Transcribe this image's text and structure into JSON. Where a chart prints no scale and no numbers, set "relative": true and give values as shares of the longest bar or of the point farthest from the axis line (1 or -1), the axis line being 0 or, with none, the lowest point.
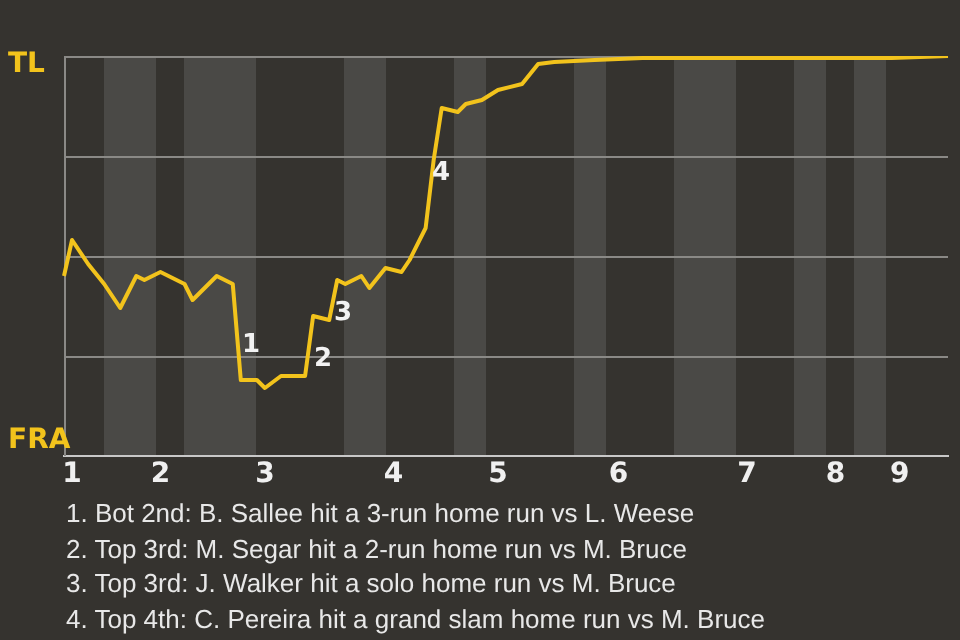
{
  "chart_data": {
    "type": "line",
    "relative": true,
    "categories": [
      null,
      "1",
      null,
      null,
      null,
      null,
      null,
      null,
      null,
      null,
      null,
      null,
      "2",
      null,
      null,
      null,
      null,
      null,
      null,
      null,
      null,
      null,
      null,
      null,
      null,
      "3",
      null,
      null,
      null,
      null,
      null,
      null,
      null,
      null,
      null,
      null,
      null,
      null,
      null,
      null,
      null,
      "4",
      null,
      null,
      null,
      null,
      null,
      null,
      null,
      null,
      null,
      null,
      null,
      null,
      "5",
      null,
      null,
      null,
      null,
      null,
      null,
      null,
      null,
      null,
      null,
      null,
      null,
      null,
      null,
      "6",
      null,
      null,
      null,
      null,
      null,
      null,
      null,
      null,
      null,
      null,
      null,
      null,
      null,
      null,
      null,
      "7",
      null,
      null,
      null,
      null,
      null,
      null,
      null,
      null,
      null,
      null,
      "8",
      null,
      null,
      null,
      null,
      null,
      null,
      null,
      "9",
      null,
      null,
      null,
      null,
      null,
      null
    ],
    "series": [
      {
        "color": "#f2c31c",
        "values": [
          0.45,
          0.54,
          null,
          0.48,
          null,
          0.43,
          null,
          0.37,
          null,
          0.45,
          0.44,
          null,
          0.46,
          null,
          null,
          0.43,
          0.39,
          null,
          null,
          0.45,
          null,
          0.43,
          0.19,
          null,
          0.19,
          0.17,
          null,
          0.2,
          null,
          null,
          0.2,
          0.35,
          null,
          0.34,
          0.44,
          0.43,
          null,
          0.45,
          0.42,
          null,
          0.47,
          null,
          0.46,
          0.49,
          null,
          0.57,
          0.74,
          0.87,
          0.865,
          0.86,
          0.88,
          null,
          0.89,
          null,
          0.915,
          null,
          null,
          0.93,
          null,
          0.98,
          null,
          0.985,
          null,
          null,
          null,
          null,
          0.99,
          null,
          null,
          null,
          null,
          null,
          0.995,
          null,
          null,
          null,
          null,
          null,
          null,
          null,
          null,
          null,
          null,
          null,
          null,
          null,
          null,
          null,
          null,
          null,
          null,
          null,
          null,
          null,
          null,
          null,
          null,
          null,
          null,
          null,
          null,
          null,
          null,
          0.995,
          null,
          null,
          null,
          null,
          null,
          null,
          1.0
        ],
        "name": null
      }
    ],
    "grid": "y",
    "marker": "none",
    "line_style": "solid",
    "annotations": [
      "TL",
      "FRA",
      "1",
      "2",
      "3",
      "4",
      "1. Bot 2nd: B. Sallee hit a 3-run home run vs L. Weese",
      "2. Top 3rd: M. Segar hit a 2-run home run vs M. Bruce",
      "3. Top 3rd: J. Walker hit a solo home run vs M. Bruce",
      "4. Top 4th: C. Pereira hit a grand slam home run vs M. Bruce"
    ]
  }
}
